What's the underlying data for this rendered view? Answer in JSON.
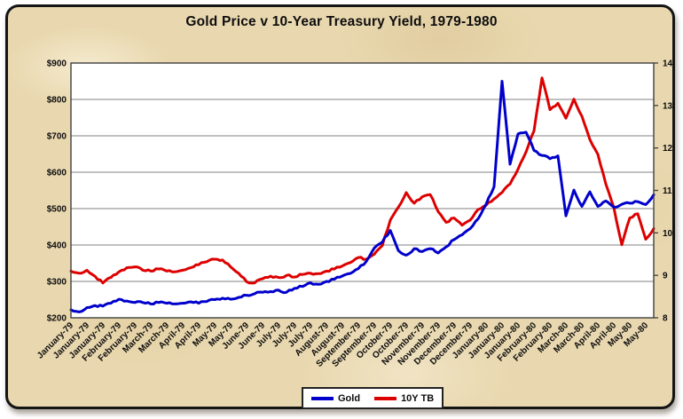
{
  "title": "Gold Price v 10-Year Treasury Yield, 1979-1980",
  "legend": {
    "items": [
      {
        "label": "Gold",
        "color": "#0000cc"
      },
      {
        "label": "10Y TB",
        "color": "#dd0000"
      }
    ]
  },
  "colors": {
    "background_parchment": "#e9d8af",
    "plot_background": "#ffffff",
    "gridline": "#808080",
    "plot_border": "#404040",
    "panel_border": "#141414",
    "text": "#0d0d0d",
    "gold_line": "#0000cc",
    "treasury_line": "#dd0000"
  },
  "chart_data": {
    "type": "line",
    "title": "Gold Price v 10-Year Treasury Yield, 1979-1980",
    "xlabel": "",
    "ylabel_left": "",
    "ylabel_right": "",
    "grid": "horizontal",
    "legend_position": "bottom",
    "x_label_every": 2,
    "x_labels": [
      "January-79",
      "January-79",
      "January-79",
      "February-79",
      "February-79",
      "March-79",
      "March-79",
      "April-79",
      "April-79",
      "May-79",
      "May-79",
      "June-79",
      "June-79",
      "July-79",
      "July-79",
      "July-79",
      "August-79",
      "August-79",
      "September-79",
      "September-79",
      "October-79",
      "October-79",
      "November-79",
      "November-79",
      "December-79",
      "December-79",
      "January-80",
      "January-80",
      "January-80",
      "February-80",
      "February-80",
      "March-80",
      "March-80",
      "April-80",
      "April-80",
      "May-80",
      "May-80"
    ],
    "left_axis": {
      "min": 200,
      "max": 900,
      "ticks": [
        "$900",
        "$800",
        "$700",
        "$600",
        "$500",
        "$400",
        "$300",
        "$200"
      ]
    },
    "right_axis": {
      "min": 8,
      "max": 14,
      "ticks": [
        "14",
        "13",
        "12",
        "11",
        "10",
        "9",
        "8"
      ]
    },
    "series": [
      {
        "name": "Gold",
        "axis": "left",
        "color": "#0000cc",
        "values": [
          222,
          216,
          228,
          234,
          232,
          240,
          251,
          246,
          242,
          242,
          238,
          242,
          240,
          238,
          240,
          244,
          240,
          245,
          250,
          254,
          251,
          256,
          262,
          266,
          270,
          272,
          276,
          270,
          281,
          286,
          296,
          292,
          300,
          306,
          315,
          322,
          335,
          355,
          392,
          408,
          440,
          385,
          372,
          390,
          382,
          390,
          378,
          395,
          415,
          428,
          445,
          472,
          512,
          560,
          850,
          622,
          705,
          710,
          660,
          646,
          637,
          645,
          480,
          551,
          506,
          546,
          506,
          521,
          504,
          512,
          515,
          519,
          511,
          538
        ]
      },
      {
        "name": "10Y TB",
        "axis": "right",
        "color": "#dd0000",
        "values": [
          9.1,
          9.05,
          9.12,
          8.98,
          8.82,
          8.95,
          9.08,
          9.18,
          9.2,
          9.12,
          9.1,
          9.15,
          9.1,
          9.08,
          9.12,
          9.18,
          9.25,
          9.32,
          9.38,
          9.36,
          9.2,
          9.05,
          8.85,
          8.82,
          8.92,
          8.98,
          8.95,
          9.0,
          8.96,
          9.02,
          9.05,
          9.04,
          9.1,
          9.15,
          9.22,
          9.3,
          9.42,
          9.38,
          9.5,
          9.7,
          10.3,
          10.6,
          10.95,
          10.7,
          10.85,
          10.9,
          10.5,
          10.25,
          10.35,
          10.18,
          10.3,
          10.55,
          10.65,
          10.8,
          10.95,
          11.15,
          11.5,
          11.9,
          12.4,
          13.65,
          12.9,
          13.05,
          12.7,
          13.15,
          12.75,
          12.2,
          11.85,
          11.15,
          10.6,
          9.72,
          10.35,
          10.45,
          9.85,
          10.1
        ]
      }
    ]
  }
}
